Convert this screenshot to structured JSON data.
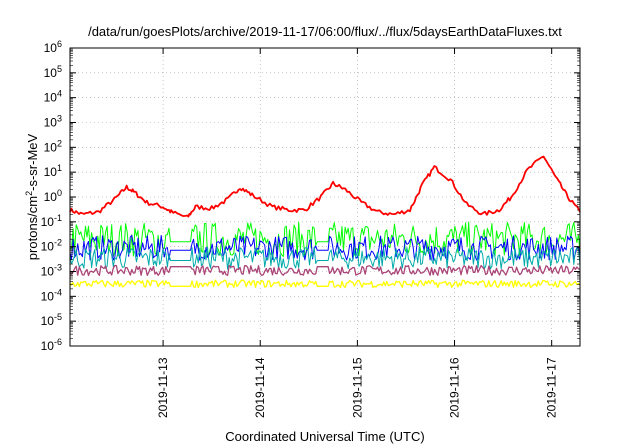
{
  "chart_data": {
    "type": "line",
    "title": "/data/run/goesPlots/archive/2019-11-17/06:00/flux/../flux/5daysEarthDataFluxes.txt",
    "xlabel": "Coordinated Universal Time (UTC)",
    "ylabel_base": "protons/cm",
    "ylabel_exp": "2",
    "ylabel_rest": "-s-sr-MeV",
    "y_scale": "log",
    "ylim": [
      1e-06,
      1000000.0
    ],
    "xlim": [
      "2019-11-12T01:00",
      "2019-11-17T07:00"
    ],
    "grid": true,
    "legend": "none",
    "x_ticks": [
      {
        "x": "2019-11-13T00:00",
        "label": "2019-11-13"
      },
      {
        "x": "2019-11-14T00:00",
        "label": "2019-11-14"
      },
      {
        "x": "2019-11-15T00:00",
        "label": "2019-11-15"
      },
      {
        "x": "2019-11-16T00:00",
        "label": "2019-11-16"
      },
      {
        "x": "2019-11-17T00:00",
        "label": "2019-11-17"
      }
    ],
    "y_ticks": [
      {
        "exp": -6,
        "label": "10",
        "sup": "-6"
      },
      {
        "exp": -5,
        "label": "10",
        "sup": "-5"
      },
      {
        "exp": -4,
        "label": "10",
        "sup": "-4"
      },
      {
        "exp": -3,
        "label": "10",
        "sup": "-3"
      },
      {
        "exp": -2,
        "label": "10",
        "sup": "-2"
      },
      {
        "exp": -1,
        "label": "10",
        "sup": "-1"
      },
      {
        "exp": 0,
        "label": "10",
        "sup": "0"
      },
      {
        "exp": 1,
        "label": "10",
        "sup": "1"
      },
      {
        "exp": 2,
        "label": "10",
        "sup": "2"
      },
      {
        "exp": 3,
        "label": "10",
        "sup": "3"
      },
      {
        "exp": 4,
        "label": "10",
        "sup": "4"
      },
      {
        "exp": 5,
        "label": "10",
        "sup": "5"
      },
      {
        "exp": 6,
        "label": "10",
        "sup": "6"
      }
    ],
    "series": [
      {
        "color": "#ff0000",
        "width": 1.8,
        "x": [
          "2019-11-12T01:00",
          "2019-11-12T04:00",
          "2019-11-12T08:00",
          "2019-11-12T12:00",
          "2019-11-12T15:00",
          "2019-11-12T17:00",
          "2019-11-12T20:00",
          "2019-11-13T00:00",
          "2019-11-13T02:00",
          "2019-11-13T06:00",
          "2019-11-13T08:00",
          "2019-11-13T12:00",
          "2019-11-13T16:00",
          "2019-11-13T19:00",
          "2019-11-13T22:00",
          "2019-11-14T03:00",
          "2019-11-14T07:00",
          "2019-11-14T11:00",
          "2019-11-14T15:00",
          "2019-11-14T18:00",
          "2019-11-14T21:00",
          "2019-11-15T01:00",
          "2019-11-15T05:00",
          "2019-11-15T09:00",
          "2019-11-15T13:00",
          "2019-11-15T16:00",
          "2019-11-15T19:00",
          "2019-11-15T23:00",
          "2019-11-16T03:00",
          "2019-11-16T07:00",
          "2019-11-16T11:00",
          "2019-11-16T14:00",
          "2019-11-16T18:00",
          "2019-11-16T22:00",
          "2019-11-17T01:00",
          "2019-11-17T04:00",
          "2019-11-17T07:00"
        ],
        "values": [
          0.3,
          0.2,
          0.25,
          0.8,
          2.5,
          1.5,
          0.6,
          0.4,
          0.25,
          0.15,
          0.4,
          0.35,
          0.8,
          2.5,
          1.2,
          0.4,
          0.3,
          0.3,
          1.0,
          3.5,
          2.0,
          0.6,
          0.25,
          0.2,
          0.3,
          3.0,
          16,
          5.0,
          0.5,
          0.2,
          0.3,
          1.0,
          12,
          45,
          6.0,
          1.0,
          0.25
        ]
      },
      {
        "color": "#00ff00",
        "width": 1,
        "base": 0.02,
        "spread": 0.7
      },
      {
        "color": "#0000ff",
        "width": 1,
        "base": 0.009,
        "spread": 0.5
      },
      {
        "color": "#00aaaa",
        "width": 1,
        "base": 0.0035,
        "spread": 0.45
      },
      {
        "color": "#aa4477",
        "width": 1.3,
        "base": 0.0011,
        "spread": 0.2
      },
      {
        "color": "#ffff00",
        "width": 1.3,
        "base": 0.00032,
        "spread": 0.15
      }
    ]
  }
}
